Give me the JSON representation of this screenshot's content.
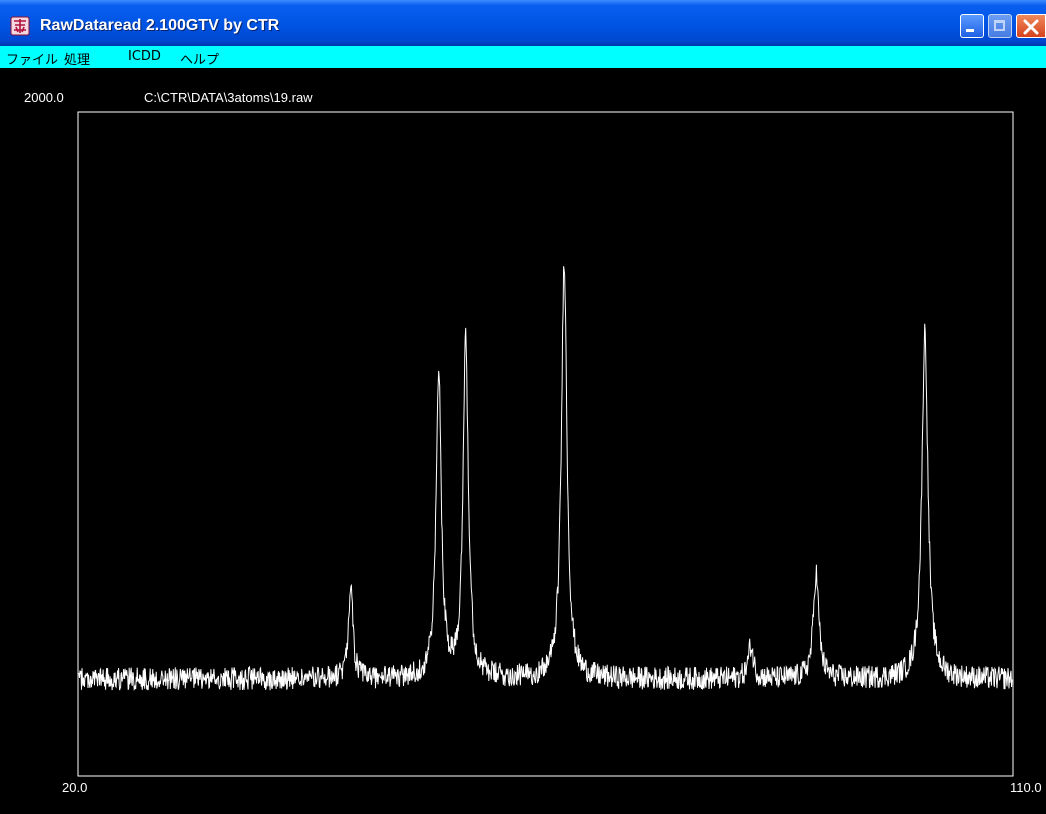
{
  "window": {
    "title": "RawDataread 2.100GTV by CTR",
    "icon": "app-icon",
    "controls": [
      "minimize-icon",
      "maximize-icon",
      "close-icon"
    ],
    "colors": {
      "titlebar": "#0055e5",
      "menubar": "#00ffff",
      "plot_bg": "#000000",
      "trace": "#ffffff"
    }
  },
  "menu": {
    "items": [
      {
        "label": "ファイル"
      },
      {
        "label": "処理"
      },
      {
        "label": "ICDD"
      },
      {
        "label": "ヘルプ"
      }
    ]
  },
  "plot": {
    "file_path": "C:\\CTR\\DATA\\3atoms\\19.raw",
    "y_max_label": "2000.0",
    "x_min_label": "20.0",
    "x_max_label": "110.0"
  },
  "chart_data": {
    "type": "line",
    "xlim": [
      20,
      110
    ],
    "ylim": [
      0,
      2000
    ],
    "grid": false,
    "baseline": 290,
    "noise_amplitude": 35,
    "peaks": [
      {
        "x": 46.2,
        "height": 290,
        "width": 0.25
      },
      {
        "x": 54.7,
        "height": 920,
        "width": 0.3
      },
      {
        "x": 57.3,
        "height": 1040,
        "width": 0.3
      },
      {
        "x": 66.8,
        "height": 1270,
        "width": 0.32
      },
      {
        "x": 84.8,
        "height": 100,
        "width": 0.3
      },
      {
        "x": 91.1,
        "height": 320,
        "width": 0.32
      },
      {
        "x": 101.6,
        "height": 1050,
        "width": 0.35
      }
    ]
  }
}
